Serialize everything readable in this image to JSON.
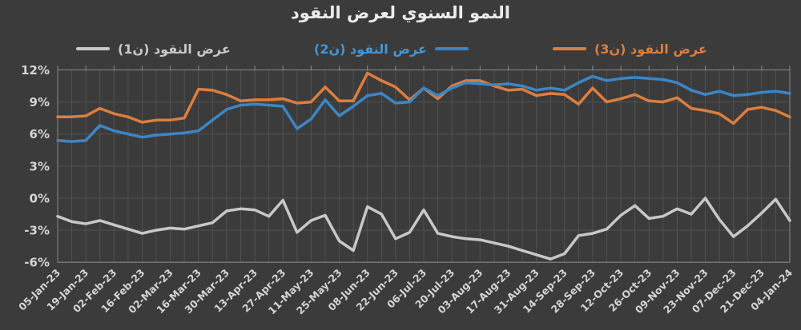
{
  "title": "النمو السنوي لعرض النقود",
  "legend": {
    "items": [
      {
        "id": "m1",
        "label": "عرض النقود (ن1)",
        "color": "#c8c8c8",
        "marker_side": "left"
      },
      {
        "id": "m2",
        "label": "عرض النقود (ن2)",
        "color": "#3c86c6",
        "marker_side": "right"
      },
      {
        "id": "m3",
        "label": "عرض النقود (ن3)",
        "color": "#dd7e3e",
        "marker_side": "left"
      }
    ]
  },
  "colors": {
    "background": "#3b3b3b",
    "gridline": "#525252",
    "plot_border": "#8a8a8a",
    "axis_text": "#d4d4d4",
    "title_text": "#ececec",
    "m1_line": "#c8c8c8",
    "m2_line": "#3c86c6",
    "m3_line": "#dd7e3e"
  },
  "chart_data": {
    "type": "line",
    "title": "النمو السنوي لعرض النقود",
    "xlabel": "",
    "ylabel": "",
    "ylim": [
      -6,
      12
    ],
    "grid": true,
    "legend_position": "top",
    "yticks": [
      "12%",
      "9%",
      "6%",
      "3%",
      "0%",
      "-3%",
      "-6%"
    ],
    "x": [
      "05-Jan-23",
      "12-Jan-23",
      "19-Jan-23",
      "26-Jan-23",
      "02-Feb-23",
      "09-Feb-23",
      "16-Feb-23",
      "23-Feb-23",
      "02-Mar-23",
      "09-Mar-23",
      "16-Mar-23",
      "23-Mar-23",
      "30-Mar-23",
      "06-Apr-23",
      "13-Apr-23",
      "20-Apr-23",
      "27-Apr-23",
      "04-May-23",
      "11-May-23",
      "18-May-23",
      "25-May-23",
      "01-Jun-23",
      "08-Jun-23",
      "15-Jun-23",
      "22-Jun-23",
      "29-Jun-23",
      "06-Jul-23",
      "13-Jul-23",
      "20-Jul-23",
      "27-Jul-23",
      "03-Aug-23",
      "10-Aug-23",
      "17-Aug-23",
      "24-Aug-23",
      "31-Aug-23",
      "07-Sep-23",
      "14-Sep-23",
      "21-Sep-23",
      "28-Sep-23",
      "05-Oct-23",
      "12-Oct-23",
      "19-Oct-23",
      "26-Oct-23",
      "02-Nov-23",
      "09-Nov-23",
      "16-Nov-23",
      "23-Nov-23",
      "30-Nov-23",
      "07-Dec-23",
      "14-Dec-23",
      "21-Dec-23",
      "28-Dec-23",
      "04-Jan-24"
    ],
    "x_tick_labels": [
      "05-Jan-23",
      "19-Jan-23",
      "02-Feb-23",
      "16-Feb-23",
      "02-Mar-23",
      "16-Mar-23",
      "30-Mar-23",
      "13-Apr-23",
      "27-Apr-23",
      "11-May-23",
      "25-May-23",
      "08-Jun-23",
      "22-Jun-23",
      "06-Jul-23",
      "20-Jul-23",
      "03-Aug-23",
      "17-Aug-23",
      "31-Aug-23",
      "14-Sep-23",
      "28-Sep-23",
      "12-Oct-23",
      "26-Oct-23",
      "09-Nov-23",
      "23-Nov-23",
      "07-Dec-23",
      "21-Dec-23",
      "04-Jan-24"
    ],
    "series": [
      {
        "name": "عرض النقود (ن1)",
        "color": "#c8c8c8",
        "values": [
          -1.7,
          -2.2,
          -2.4,
          -2.1,
          -2.5,
          -2.9,
          -3.3,
          -3.0,
          -2.8,
          -2.9,
          -2.6,
          -2.3,
          -1.2,
          -1.0,
          -1.1,
          -1.7,
          -0.2,
          -3.2,
          -2.1,
          -1.6,
          -4.0,
          -4.9,
          -0.8,
          -1.5,
          -3.8,
          -3.2,
          -1.1,
          -3.3,
          -3.6,
          -3.8,
          -3.9,
          -4.2,
          -4.5,
          -4.9,
          -5.3,
          -5.7,
          -5.2,
          -3.5,
          -3.3,
          -2.9,
          -1.6,
          -0.7,
          -1.9,
          -1.7,
          -1.0,
          -1.5,
          0.0,
          -2.0,
          -3.6,
          -2.6,
          -1.4,
          -0.1,
          -2.1
        ]
      },
      {
        "name": "عرض النقود (ن2)",
        "color": "#3c86c6",
        "values": [
          5.4,
          5.3,
          5.4,
          6.8,
          6.3,
          6.0,
          5.7,
          5.9,
          6.0,
          6.1,
          6.3,
          7.3,
          8.3,
          8.7,
          8.8,
          8.7,
          8.6,
          6.5,
          7.4,
          9.2,
          7.7,
          8.6,
          9.6,
          9.8,
          8.9,
          9.0,
          10.3,
          9.6,
          10.3,
          10.8,
          10.7,
          10.6,
          10.7,
          10.5,
          10.1,
          10.3,
          10.1,
          10.8,
          11.4,
          11.0,
          11.2,
          11.3,
          11.2,
          11.1,
          10.8,
          10.1,
          9.7,
          10.0,
          9.6,
          9.7,
          9.9,
          10.0,
          9.8
        ]
      },
      {
        "name": "عرض النقود (ن3)",
        "color": "#dd7e3e",
        "values": [
          7.6,
          7.6,
          7.7,
          8.4,
          7.9,
          7.6,
          7.1,
          7.3,
          7.3,
          7.5,
          10.2,
          10.1,
          9.7,
          9.1,
          9.2,
          9.2,
          9.3,
          8.9,
          9.0,
          10.4,
          9.1,
          9.1,
          11.7,
          11.0,
          10.4,
          9.2,
          10.3,
          9.3,
          10.5,
          11.0,
          11.0,
          10.5,
          10.1,
          10.2,
          9.6,
          9.8,
          9.7,
          8.8,
          10.3,
          9.0,
          9.3,
          9.7,
          9.1,
          9.0,
          9.4,
          8.4,
          8.2,
          7.9,
          7.0,
          8.3,
          8.5,
          8.2,
          7.6
        ]
      }
    ]
  }
}
